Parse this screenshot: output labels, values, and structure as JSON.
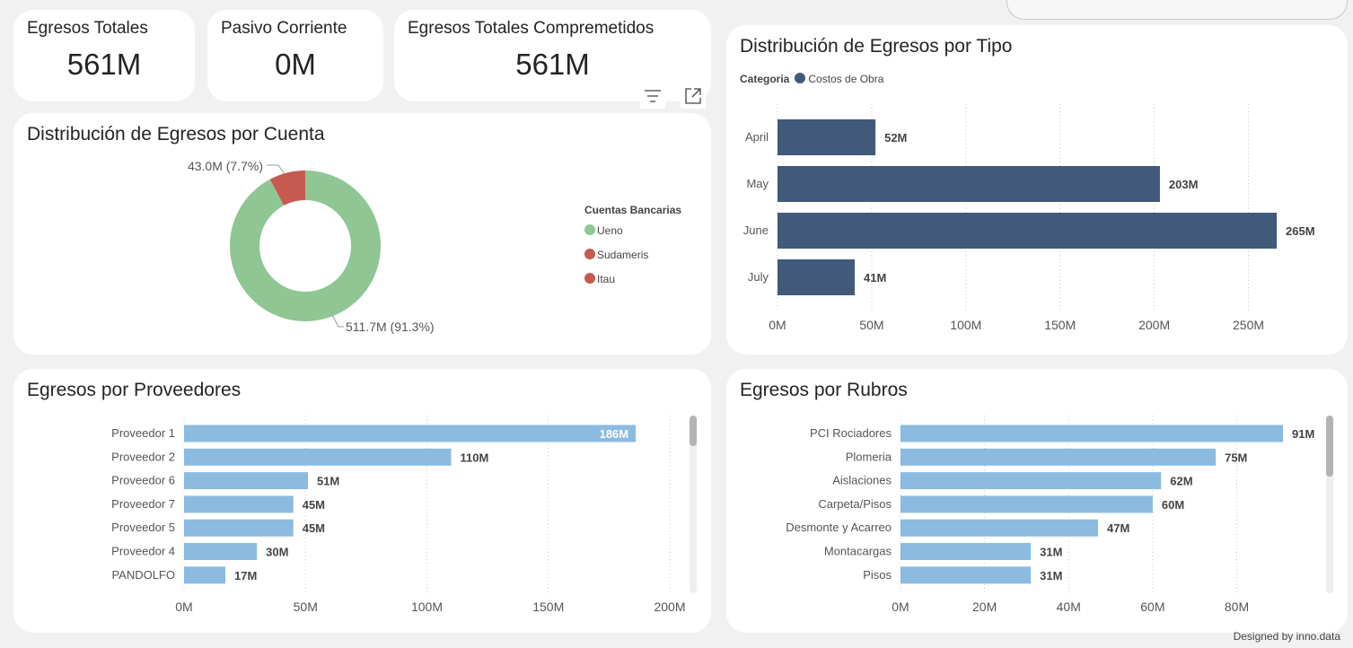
{
  "kpis": [
    {
      "label": "Egresos Totales",
      "value": "561M"
    },
    {
      "label": "Pasivo Corriente",
      "value": "0M"
    },
    {
      "label": "Egresos Totales Compremetidos",
      "value": "561M"
    }
  ],
  "footer": {
    "prefix": "Designed by ",
    "brand": "inno.data"
  },
  "colors": {
    "ueno": "#8fc694",
    "sudameris": "#c65a50",
    "itau": "#c65a50",
    "tipo": "#415a7c",
    "bars": "#8bbbe0"
  },
  "chart_data": [
    {
      "id": "donut",
      "type": "pie",
      "title": "Distribución de Egresos por Cuenta",
      "legend_title": "Cuentas Bancarias",
      "slices": [
        {
          "name": "Ueno",
          "value": 511.7,
          "label": "511.7M (91.3%)"
        },
        {
          "name": "Sudameris",
          "value": 43.0,
          "label": "43.0M (7.7%)"
        },
        {
          "name": "Itau",
          "value": 0,
          "label": ""
        }
      ]
    },
    {
      "id": "tipo",
      "type": "bar",
      "orientation": "horizontal",
      "title": "Distribución de Egresos por Tipo",
      "legend_title": "Categoria",
      "series_name": "Costos de Obra",
      "categories": [
        "April",
        "May",
        "June",
        "July"
      ],
      "values": [
        52,
        203,
        265,
        41
      ],
      "value_labels": [
        "52M",
        "203M",
        "265M",
        "41M"
      ],
      "xlim": [
        0,
        275
      ],
      "ticks": [
        0,
        50,
        100,
        150,
        200,
        250
      ],
      "tick_labels": [
        "0M",
        "50M",
        "100M",
        "150M",
        "200M",
        "250M"
      ]
    },
    {
      "id": "proveedores",
      "type": "bar",
      "orientation": "horizontal",
      "title": "Egresos por Proveedores",
      "categories": [
        "Proveedor 1",
        "Proveedor 2",
        "Proveedor 6",
        "Proveedor 7",
        "Proveedor 5",
        "Proveedor 4",
        "PANDOLFO"
      ],
      "values": [
        186,
        110,
        51,
        45,
        45,
        30,
        17
      ],
      "value_labels": [
        "186M",
        "110M",
        "51M",
        "45M",
        "45M",
        "30M",
        "17M"
      ],
      "xlim": [
        0,
        200
      ],
      "ticks": [
        0,
        50,
        100,
        150,
        200
      ],
      "tick_labels": [
        "0M",
        "50M",
        "100M",
        "150M",
        "200M"
      ]
    },
    {
      "id": "rubros",
      "type": "bar",
      "orientation": "horizontal",
      "title": "Egresos por Rubros",
      "categories": [
        "PCI Rociadores",
        "Plomeria",
        "Aislaciones",
        "Carpeta/Pisos",
        "Desmonte y Acarreo",
        "Montacargas",
        "Pisos"
      ],
      "values": [
        91,
        75,
        62,
        60,
        47,
        31,
        31
      ],
      "value_labels": [
        "91M",
        "75M",
        "62M",
        "60M",
        "47M",
        "31M",
        "31M"
      ],
      "xlim": [
        0,
        91
      ],
      "ticks": [
        0,
        20,
        40,
        60,
        80
      ],
      "tick_labels": [
        "0M",
        "20M",
        "40M",
        "60M",
        "80M"
      ]
    }
  ]
}
